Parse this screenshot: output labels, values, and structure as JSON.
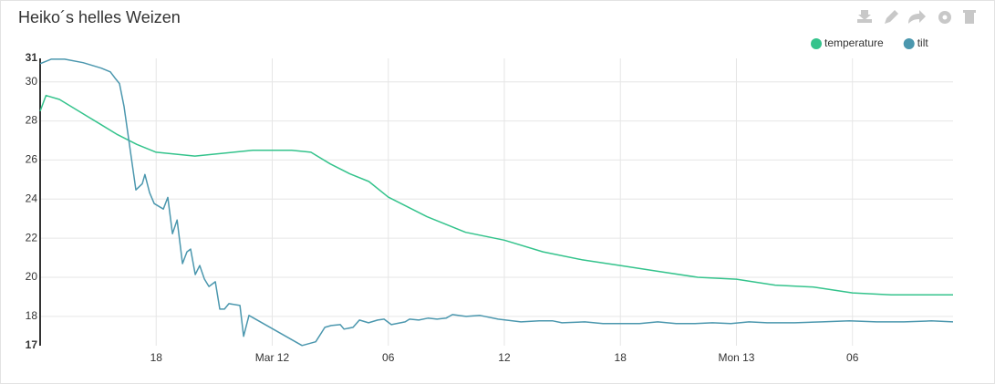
{
  "chart_data": {
    "type": "line",
    "title": "Heiko´s helles Weizen",
    "xlim": [
      0,
      47.2
    ],
    "xticks": [
      {
        "value": 6,
        "label": "18"
      },
      {
        "value": 12,
        "label": "Mar 12"
      },
      {
        "value": 18,
        "label": "06"
      },
      {
        "value": 24,
        "label": "12"
      },
      {
        "value": 30,
        "label": "18"
      },
      {
        "value": 36,
        "label": "Mon 13"
      },
      {
        "value": 42,
        "label": "06"
      }
    ],
    "ylim": [
      16.5,
      31.2
    ],
    "yticks": [
      {
        "value": 16.5,
        "label": "17"
      },
      18,
      20,
      22,
      24,
      26,
      28,
      30,
      {
        "value": 31.2,
        "label": "31"
      }
    ],
    "grid": true,
    "legend": "top-right",
    "series": [
      {
        "name": "temperature",
        "color": "#34c38c",
        "x": [
          0,
          0.3,
          1,
          2,
          3,
          4,
          5,
          6,
          7,
          8,
          9,
          10,
          11,
          12,
          13,
          14,
          15,
          16,
          17,
          18,
          20,
          22,
          24,
          26,
          28,
          30,
          32,
          34,
          36,
          38,
          40,
          42,
          44,
          47.2
        ],
        "values": [
          28.5,
          29.3,
          29.1,
          28.5,
          27.9,
          27.3,
          26.8,
          26.4,
          26.3,
          26.2,
          26.3,
          26.4,
          26.5,
          26.5,
          26.5,
          26.4,
          25.8,
          25.3,
          24.9,
          24.1,
          23.1,
          22.3,
          21.9,
          21.3,
          20.9,
          20.6,
          20.3,
          20.0,
          19.9,
          19.6,
          19.5,
          19.2,
          19.1,
          19.1
        ]
      },
      {
        "name": "tilt",
        "color": "#4b97ae",
        "x": [
          0,
          0.57,
          1.27,
          2.22,
          3.16,
          3.63,
          3.87,
          4.1,
          4.34,
          4.95,
          5.28,
          5.42,
          5.66,
          5.9,
          6.37,
          6.6,
          6.84,
          7.08,
          7.36,
          7.59,
          7.78,
          8.02,
          8.25,
          8.49,
          8.73,
          9.06,
          9.29,
          9.53,
          9.76,
          10.33,
          10.52,
          10.8,
          13.54,
          14.25,
          14.72,
          15.05,
          15.52,
          15.71,
          16.18,
          16.51,
          16.98,
          17.45,
          17.78,
          18.16,
          18.87,
          19.1,
          19.58,
          20.05,
          20.52,
          20.99,
          21.32,
          22.03,
          22.74,
          23.68,
          24.86,
          25.8,
          26.51,
          26.98,
          28.16,
          29.1,
          30.99,
          31.93,
          32.88,
          33.82,
          34.76,
          35.71,
          36.65,
          37.59,
          39.01,
          40.42,
          41.84,
          43.25,
          44.67,
          46.08,
          47.2
        ],
        "values": [
          30.93,
          31.16,
          31.16,
          30.98,
          30.7,
          30.51,
          30.19,
          29.91,
          28.74,
          24.47,
          24.79,
          25.26,
          24.33,
          23.77,
          23.49,
          24.09,
          22.23,
          22.93,
          20.7,
          21.3,
          21.44,
          20.14,
          20.6,
          19.91,
          19.53,
          19.77,
          18.37,
          18.37,
          18.65,
          18.56,
          16.98,
          18.05,
          16.51,
          16.7,
          17.44,
          17.53,
          17.58,
          17.35,
          17.44,
          17.81,
          17.67,
          17.81,
          17.86,
          17.58,
          17.72,
          17.86,
          17.81,
          17.91,
          17.86,
          17.91,
          18.09,
          18.0,
          18.05,
          17.86,
          17.72,
          17.77,
          17.77,
          17.67,
          17.72,
          17.63,
          17.63,
          17.72,
          17.63,
          17.63,
          17.67,
          17.63,
          17.72,
          17.67,
          17.67,
          17.72,
          17.77,
          17.72,
          17.72,
          17.77,
          17.72
        ]
      }
    ]
  }
}
